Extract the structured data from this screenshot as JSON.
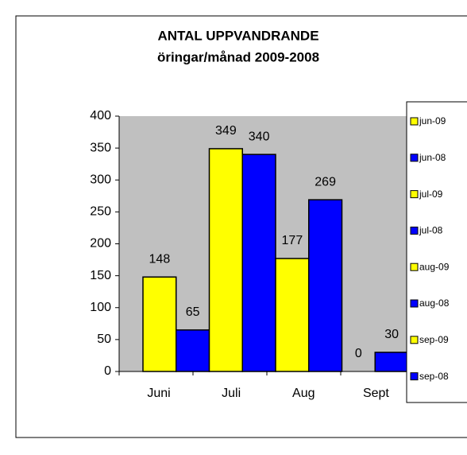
{
  "chart_data": {
    "type": "bar",
    "title": "ANTAL UPPVANDRANDE",
    "subtitle": "öringar/månad 2009-2008",
    "categories": [
      "Juni",
      "Juli",
      "Aug",
      "Sept"
    ],
    "series": [
      {
        "name": "jun-09",
        "color": "#ffff00",
        "values": [
          148,
          null,
          null,
          null
        ]
      },
      {
        "name": "jun-08",
        "color": "#0000ff",
        "values": [
          65,
          null,
          null,
          null
        ]
      },
      {
        "name": "jul-09",
        "color": "#ffff00",
        "values": [
          null,
          349,
          null,
          null
        ]
      },
      {
        "name": "jul-08",
        "color": "#0000ff",
        "values": [
          null,
          340,
          null,
          null
        ]
      },
      {
        "name": "aug-09",
        "color": "#ffff00",
        "values": [
          null,
          null,
          177,
          null
        ]
      },
      {
        "name": "aug-08",
        "color": "#0000ff",
        "values": [
          null,
          null,
          269,
          null
        ]
      },
      {
        "name": "sep-09",
        "color": "#ffff00",
        "values": [
          null,
          null,
          null,
          0
        ]
      },
      {
        "name": "sep-08",
        "color": "#0000ff",
        "values": [
          null,
          null,
          null,
          30
        ]
      }
    ],
    "ylim": [
      0,
      400
    ],
    "yticks": [
      0,
      50,
      100,
      150,
      200,
      250,
      300,
      350,
      400
    ],
    "grid": false,
    "legend": "right",
    "plot_background": "#c0c0c0"
  }
}
